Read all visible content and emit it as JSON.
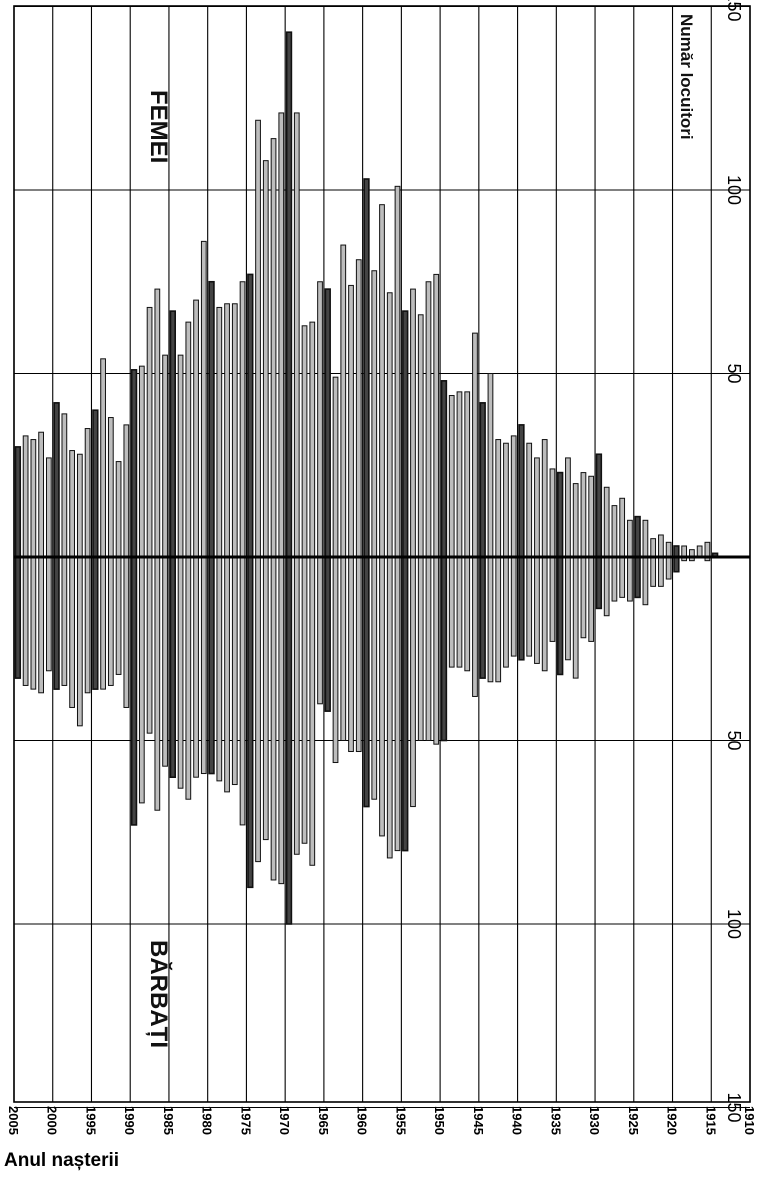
{
  "chart_data": {
    "type": "bar",
    "orientation": "population-pyramid (rotated: birth years along the long axis, counts across)",
    "title": "",
    "xlabel": "Anul nașterii",
    "ylabel": "Număr locuitori",
    "female_label": "FEMEI",
    "male_label": "BĂRBAȚI",
    "year_range": [
      1910,
      2005
    ],
    "year_ticks": [
      "1910",
      "1915",
      "1920",
      "1925",
      "1930",
      "1935",
      "1940",
      "1945",
      "1950",
      "1955",
      "1960",
      "1965",
      "1970",
      "1975",
      "1980",
      "1985",
      "1990",
      "1995",
      "2000",
      "2005"
    ],
    "count_ticks_female": [
      "50",
      "100",
      "150"
    ],
    "count_ticks_male": [
      "50",
      "100",
      "150"
    ],
    "count_max": 150,
    "grid": true,
    "categories": [
      2005,
      2004,
      2003,
      2002,
      2001,
      2000,
      1999,
      1998,
      1997,
      1996,
      1995,
      1994,
      1993,
      1992,
      1991,
      1990,
      1989,
      1988,
      1987,
      1986,
      1985,
      1984,
      1983,
      1982,
      1981,
      1980,
      1979,
      1978,
      1977,
      1976,
      1975,
      1974,
      1973,
      1972,
      1971,
      1970,
      1969,
      1968,
      1967,
      1966,
      1965,
      1964,
      1963,
      1962,
      1961,
      1960,
      1959,
      1958,
      1957,
      1956,
      1955,
      1954,
      1953,
      1952,
      1951,
      1950,
      1949,
      1948,
      1947,
      1946,
      1945,
      1944,
      1943,
      1942,
      1941,
      1940,
      1939,
      1938,
      1937,
      1936,
      1935,
      1934,
      1933,
      1932,
      1931,
      1930,
      1929,
      1928,
      1927,
      1926,
      1925,
      1924,
      1923,
      1922,
      1921,
      1920,
      1919,
      1918,
      1917,
      1916,
      1915,
      1914,
      1913,
      1912,
      1911,
      1910
    ],
    "series": [
      {
        "name": "FEMEI",
        "values": [
          30,
          33,
          32,
          34,
          27,
          42,
          39,
          29,
          28,
          35,
          40,
          54,
          38,
          26,
          36,
          51,
          52,
          68,
          73,
          55,
          67,
          55,
          64,
          70,
          86,
          75,
          68,
          69,
          69,
          75,
          77,
          119,
          108,
          114,
          121,
          143,
          121,
          63,
          64,
          75,
          73,
          49,
          85,
          74,
          81,
          103,
          78,
          96,
          72,
          101,
          67,
          73,
          66,
          75,
          77,
          48,
          44,
          45,
          45,
          61,
          42,
          50,
          32,
          31,
          33,
          36,
          31,
          27,
          32,
          24,
          23,
          27,
          20,
          23,
          22,
          28,
          19,
          14,
          16,
          10,
          11,
          10,
          5,
          6,
          4,
          3,
          3,
          2,
          3,
          4,
          1,
          0,
          0,
          0,
          0,
          0
        ]
      },
      {
        "name": "BĂRBAȚI",
        "values": [
          33,
          35,
          36,
          37,
          31,
          36,
          35,
          41,
          46,
          37,
          36,
          36,
          35,
          32,
          41,
          73,
          67,
          48,
          69,
          57,
          60,
          63,
          66,
          60,
          59,
          59,
          61,
          64,
          62,
          73,
          90,
          83,
          77,
          88,
          89,
          100,
          81,
          78,
          84,
          40,
          42,
          56,
          50,
          53,
          53,
          68,
          66,
          76,
          82,
          80,
          80,
          68,
          50,
          50,
          51,
          50,
          30,
          30,
          31,
          38,
          33,
          34,
          34,
          30,
          27,
          28,
          27,
          29,
          31,
          23,
          32,
          28,
          33,
          22,
          23,
          14,
          16,
          12,
          11,
          12,
          11,
          13,
          8,
          8,
          6,
          4,
          1,
          1,
          0,
          1,
          0,
          0,
          0,
          0,
          0,
          0
        ]
      }
    ]
  }
}
